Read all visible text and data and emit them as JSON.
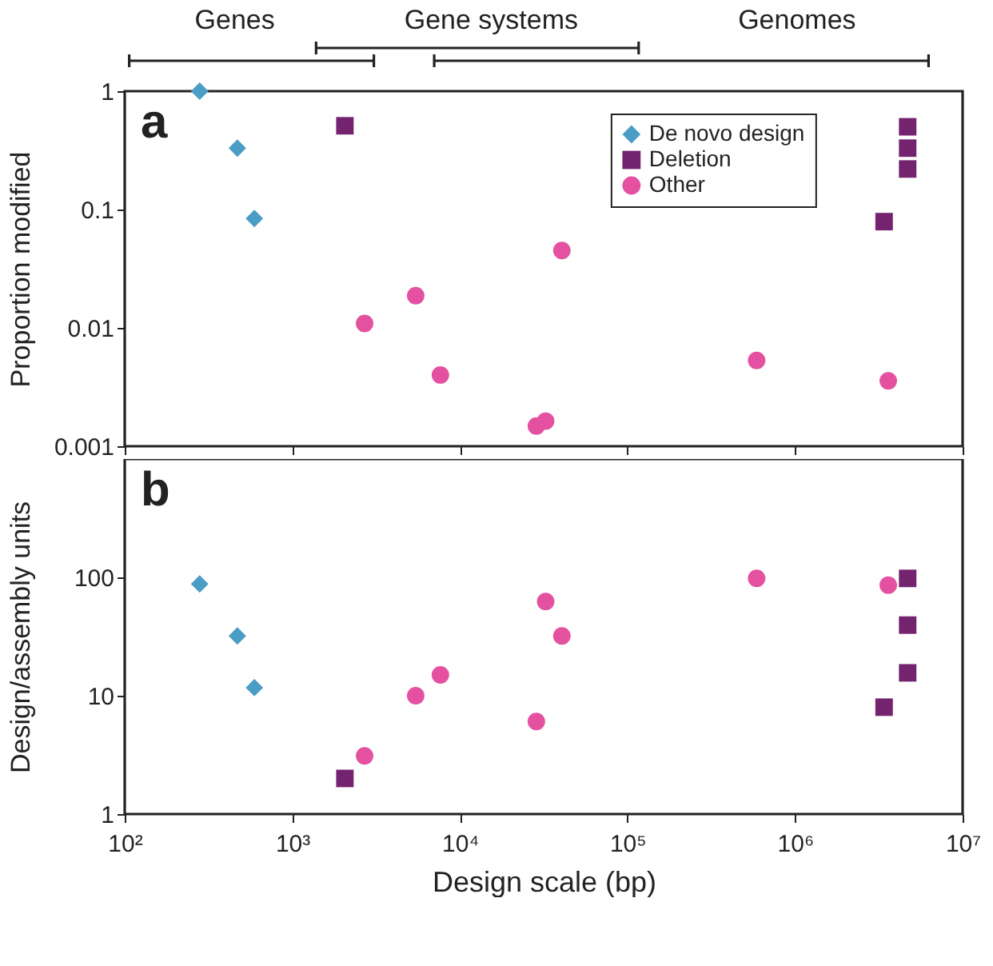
{
  "chart_data": [
    {
      "type": "scatter",
      "ylabel": "Proportion modified",
      "annotations": [
        "a",
        "Genes",
        "Gene systems",
        "Genomes"
      ],
      "log": "xy",
      "legend": "top right",
      "tick_labels": "y",
      "xlim": [
        100,
        10000000
      ],
      "xticks": [
        {
          "value": 100,
          "label": null
        },
        {
          "value": 1000,
          "label": null
        },
        {
          "value": 10000,
          "label": null
        },
        {
          "value": 100000,
          "label": null
        },
        {
          "value": 1000000,
          "label": null
        },
        {
          "value": 10000000,
          "label": null
        }
      ],
      "ylim": [
        0.001,
        1
      ],
      "yticks": [
        0.001,
        0.01,
        0.1,
        1
      ],
      "series": [
        {
          "name": "De novo design",
          "color": "#4b9dc6",
          "marker": "diamond",
          "x": [
            280,
            470,
            594
          ],
          "values": [
            1,
            0.33,
            0.084
          ]
        },
        {
          "name": "Deletion",
          "color": "#74246f",
          "marker": "square",
          "x": [
            2060,
            4700000,
            4700000,
            4700000,
            3400000
          ],
          "values": [
            0.51,
            0.5,
            0.33,
            0.22,
            0.079
          ]
        },
        {
          "name": "Other",
          "color": "#e451a0",
          "marker": "circle",
          "x": [
            2700,
            5450,
            7650,
            32500,
            590000,
            40600,
            28600,
            3600000
          ],
          "values": [
            0.0109,
            0.0187,
            0.004,
            0.00163,
            0.0053,
            0.045,
            0.00148,
            0.00357
          ]
        }
      ]
    },
    {
      "type": "scatter",
      "xlabel": "Design scale (bp)",
      "ylabel": "Design/assembly units",
      "annotations": [
        "b"
      ],
      "log": "xy",
      "xlim": [
        100,
        10000000
      ],
      "xticks": [
        {
          "value": 100,
          "label": "10²"
        },
        {
          "value": 1000,
          "label": "10³"
        },
        {
          "value": 10000,
          "label": "10⁴"
        },
        {
          "value": 100000,
          "label": "10⁵"
        },
        {
          "value": 1000000,
          "label": "10⁶"
        },
        {
          "value": 10000000,
          "label": "10⁷"
        }
      ],
      "ylim": [
        1,
        1000
      ],
      "yticks": [
        1,
        10,
        100
      ],
      "series": [
        {
          "color": "#4b9dc6",
          "marker": "diamond",
          "x": [
            280,
            470,
            594
          ],
          "values": [
            88,
            32,
            11.7
          ]
        },
        {
          "color": "#74246f",
          "marker": "square",
          "x": [
            2060,
            4700000,
            4700000,
            4700000,
            3400000
          ],
          "values": [
            2,
            98,
            39.5,
            15.6,
            8
          ]
        },
        {
          "color": "#e451a0",
          "marker": "circle",
          "x": [
            2700,
            5450,
            7650,
            32500,
            590000,
            40600,
            28600,
            3600000
          ],
          "values": [
            3.1,
            10,
            15,
            62.5,
            98,
            32,
            6.05,
            86
          ]
        }
      ]
    }
  ]
}
